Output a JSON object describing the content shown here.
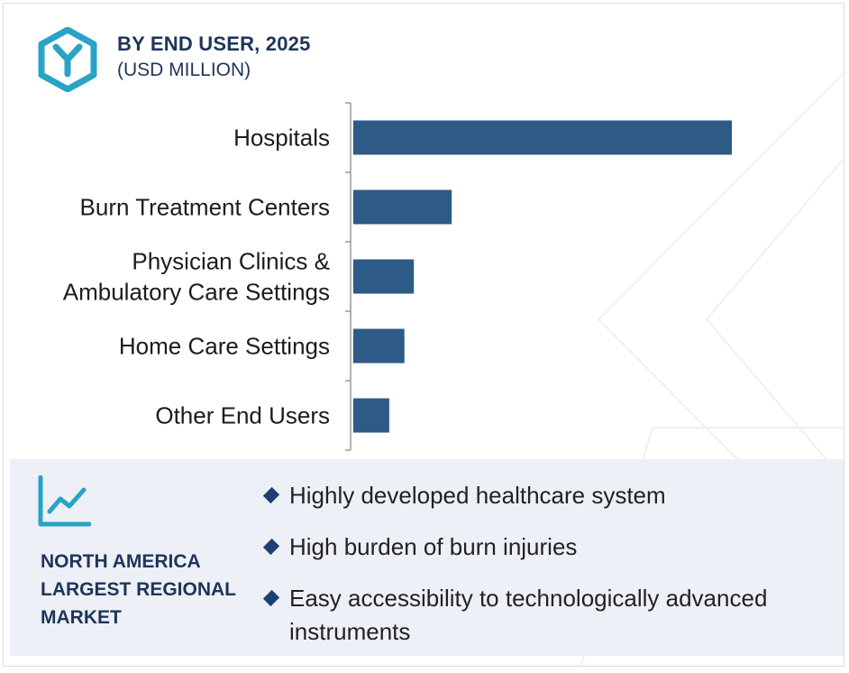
{
  "header": {
    "title": "BY END USER, 2025",
    "subtitle": "(USD MILLION)",
    "logo_icon": "hexagon-y-logo-icon"
  },
  "colors": {
    "bar": "#2e5a87",
    "heading": "#1e3559",
    "panel_bg": "#eef0f7",
    "logo": "#29a3c6",
    "bullet": "#1e3f73"
  },
  "chart_data": {
    "type": "bar",
    "orientation": "horizontal",
    "title": "BY END USER, 2025",
    "subtitle": "(USD MILLION)",
    "categories": [
      [
        "Hospitals"
      ],
      [
        "Burn Treatment Centers"
      ],
      [
        "Physician Clinics &",
        "Ambulatory Care Settings"
      ],
      [
        "Home Care Settings"
      ],
      [
        "Other End Users"
      ]
    ],
    "values": [
      100,
      26,
      16,
      13.5,
      9.5
    ],
    "xlim": [
      0,
      100
    ],
    "grid": false,
    "value_axis_shown": false
  },
  "panel": {
    "icon": "trend-chart-icon",
    "region_lines": [
      "NORTH AMERICA",
      "LARGEST REGIONAL",
      "MARKET"
    ],
    "bullets": [
      "Highly developed healthcare system",
      "High burden of burn injuries",
      "Easy accessibility to technologically advanced instruments"
    ]
  }
}
